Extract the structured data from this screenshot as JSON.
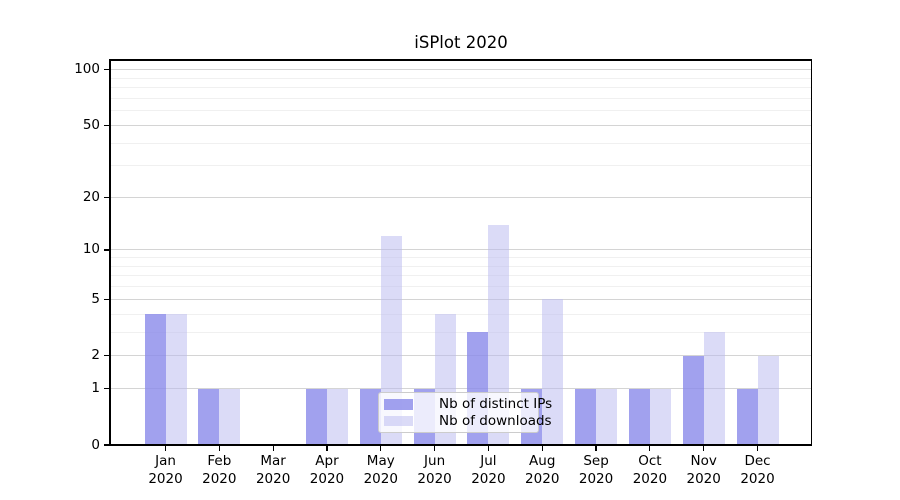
{
  "title": "iSPlot 2020",
  "chart_data": {
    "type": "bar",
    "title": "iSPlot 2020",
    "x_categories": [
      "Jan",
      "Feb",
      "Mar",
      "Apr",
      "May",
      "Jun",
      "Jul",
      "Aug",
      "Sep",
      "Oct",
      "Nov",
      "Dec"
    ],
    "x_year_label": "2020",
    "series": [
      {
        "name": "Nb of distinct IPs",
        "color": "#8989ea",
        "opacity": 0.8,
        "values": [
          4,
          1,
          0,
          1,
          1,
          1,
          3,
          1,
          1,
          1,
          2,
          1
        ]
      },
      {
        "name": "Nb of downloads",
        "color": "#b7b7f0",
        "opacity": 0.5,
        "values": [
          4,
          1,
          0,
          1,
          12,
          4,
          14,
          5,
          1,
          1,
          3,
          2
        ]
      }
    ],
    "yscale": "log1p",
    "ylim": [
      0,
      100
    ],
    "y_major_ticks": [
      0,
      1,
      2,
      5,
      10,
      20,
      50,
      100
    ],
    "y_minor_ticks": [
      3,
      4,
      6,
      7,
      8,
      9,
      30,
      40,
      60,
      70,
      80,
      90
    ],
    "grid": true,
    "legend_position": "lower-center"
  }
}
